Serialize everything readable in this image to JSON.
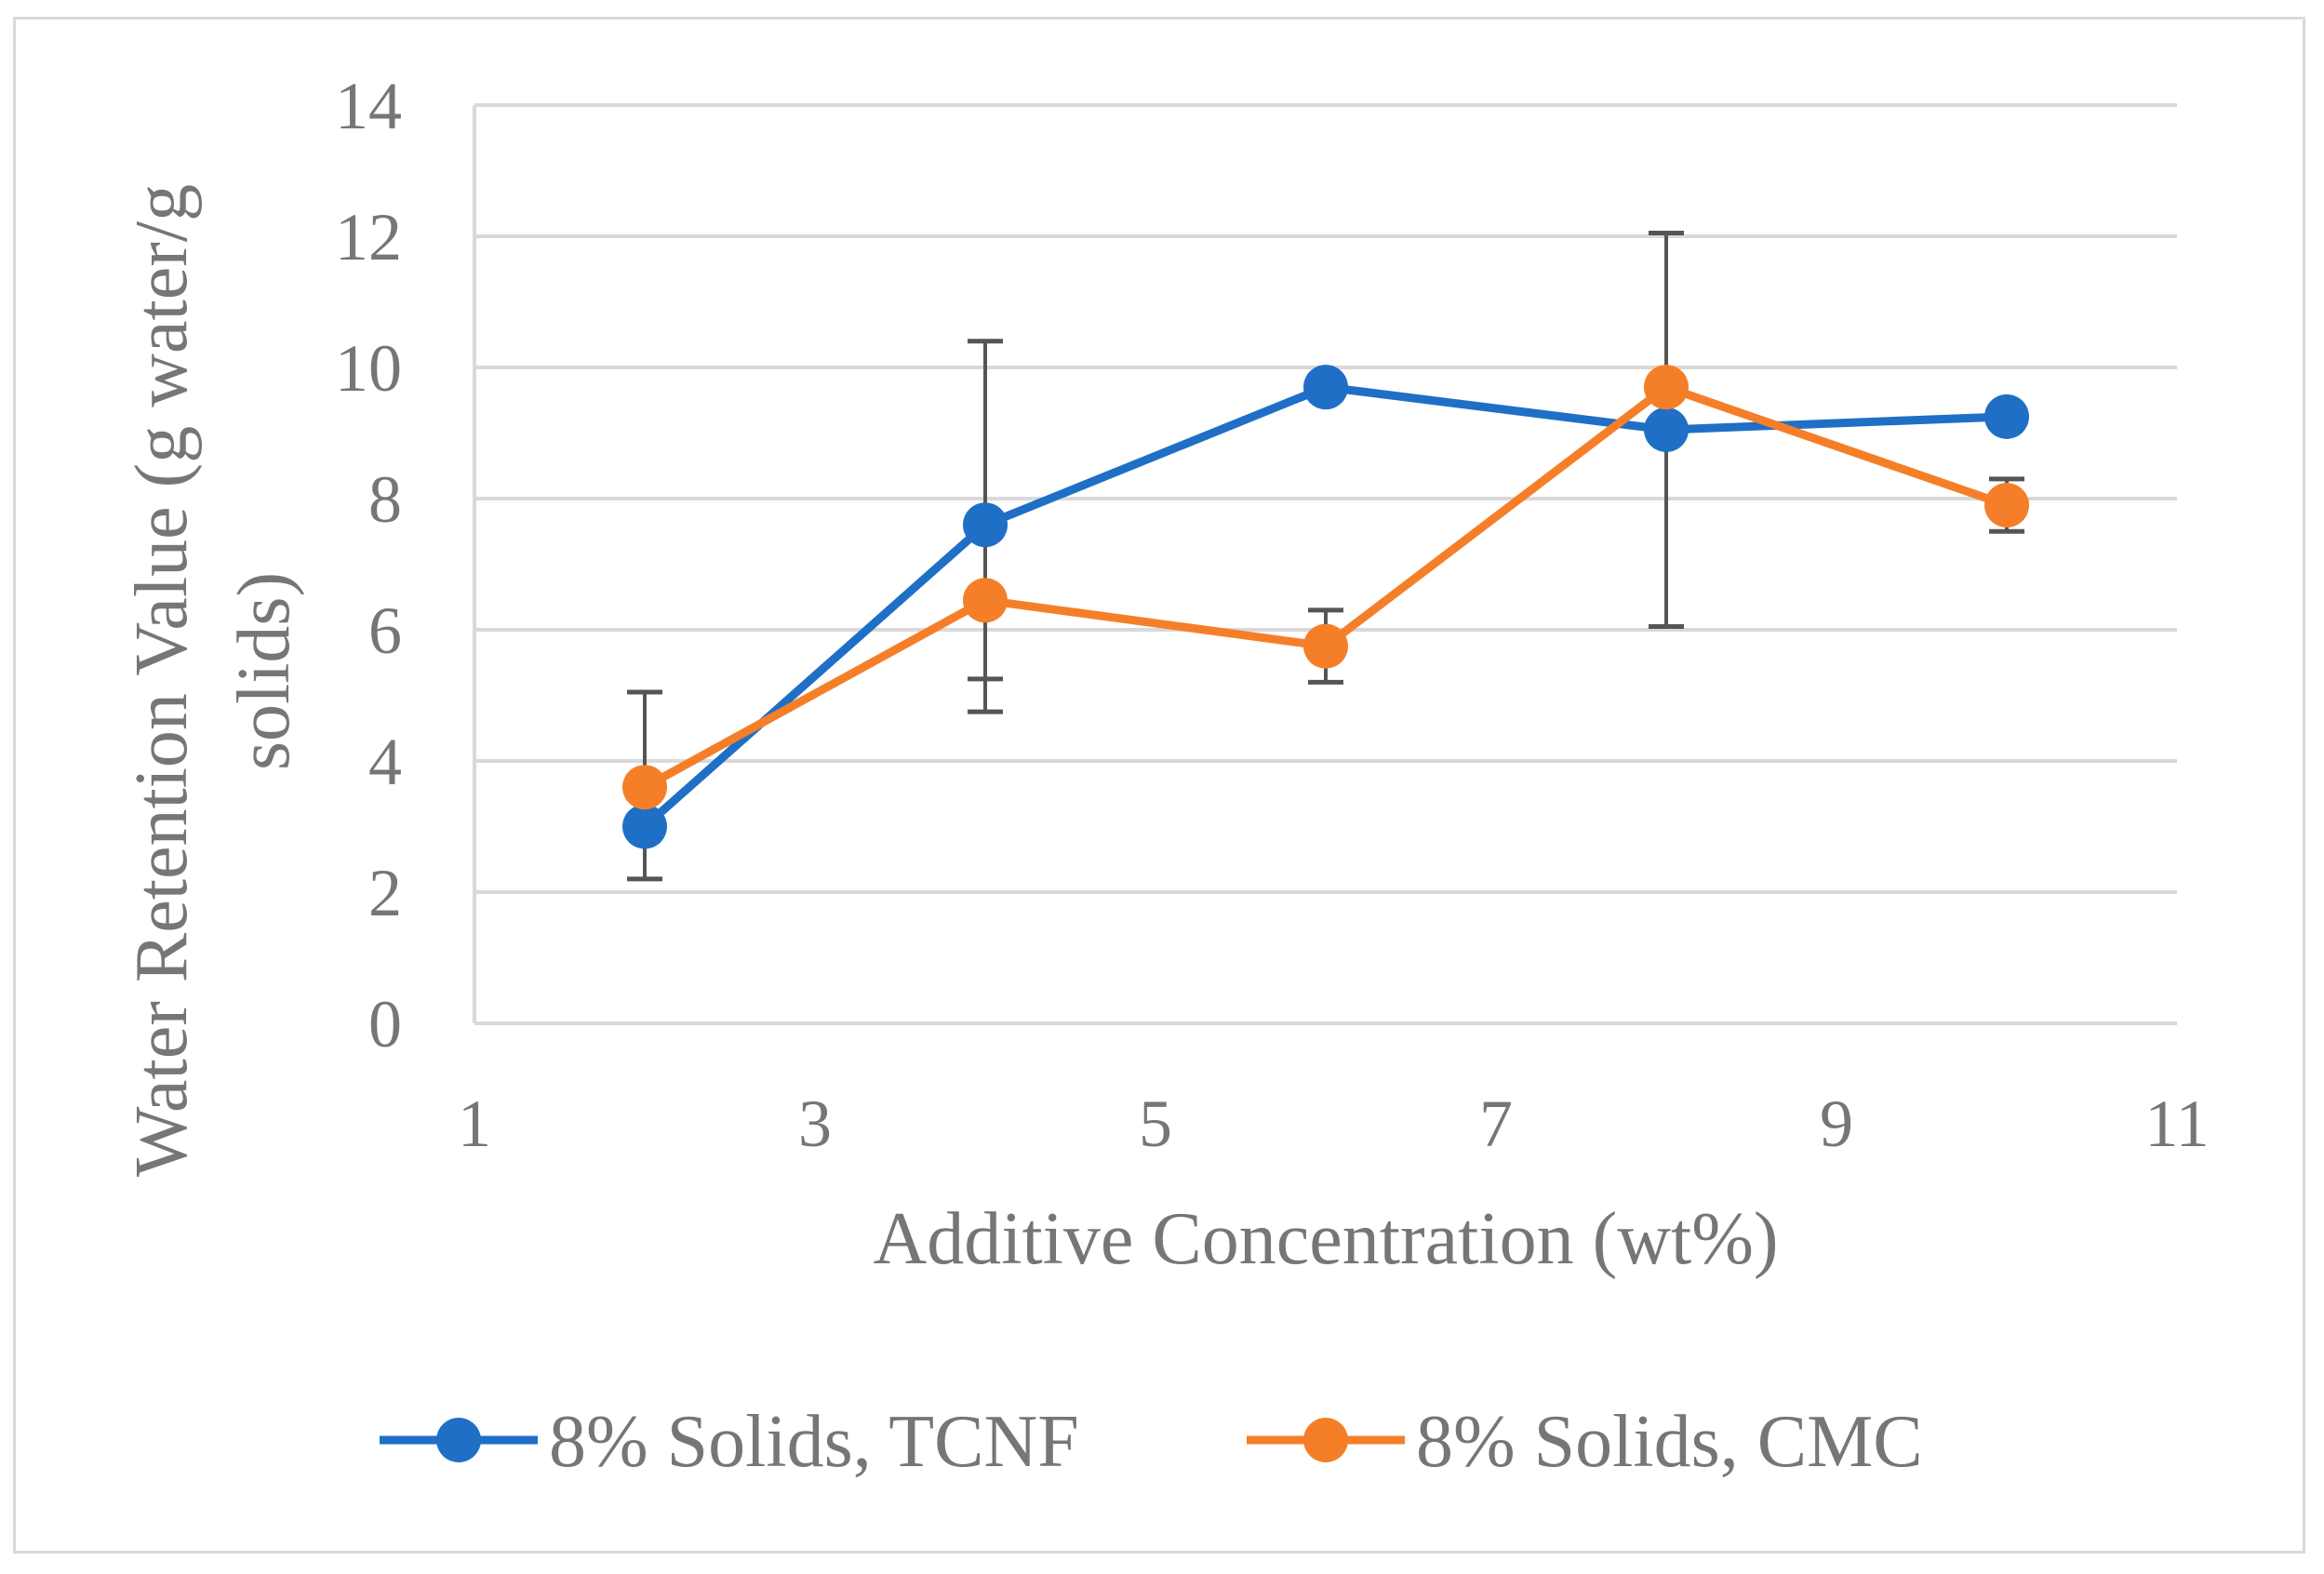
{
  "chart_data": {
    "type": "line",
    "title": "",
    "xlabel": "Additive Concentration (wt%)",
    "ylabel_lines": [
      "Water Retention Value (g water/g",
      "solids)"
    ],
    "xlim": [
      1,
      11
    ],
    "ylim": [
      0,
      14
    ],
    "x_ticks": [
      1,
      3,
      5,
      7,
      9,
      11
    ],
    "y_ticks": [
      0,
      2,
      4,
      6,
      8,
      10,
      12,
      14
    ],
    "grid": "horizontal",
    "legend_position": "bottom",
    "series": [
      {
        "name": "8% Solids, TCNF",
        "color": "#1f6fc6",
        "x": [
          2,
          4,
          6,
          8,
          10
        ],
        "y": [
          3.0,
          7.6,
          9.7,
          9.05,
          9.25
        ],
        "err_low": [
          0.8,
          2.35,
          0,
          0,
          0
        ],
        "err_high": [
          0,
          0,
          0,
          0,
          0
        ]
      },
      {
        "name": "8% Solids, CMC",
        "color": "#f57f29",
        "x": [
          2,
          4,
          6,
          8,
          10
        ],
        "y": [
          3.6,
          6.45,
          5.75,
          9.7,
          7.9
        ],
        "err_low": [
          0,
          1.7,
          0.55,
          3.65,
          0.4
        ],
        "err_high": [
          1.45,
          3.95,
          0.55,
          2.35,
          0.4
        ]
      }
    ]
  }
}
